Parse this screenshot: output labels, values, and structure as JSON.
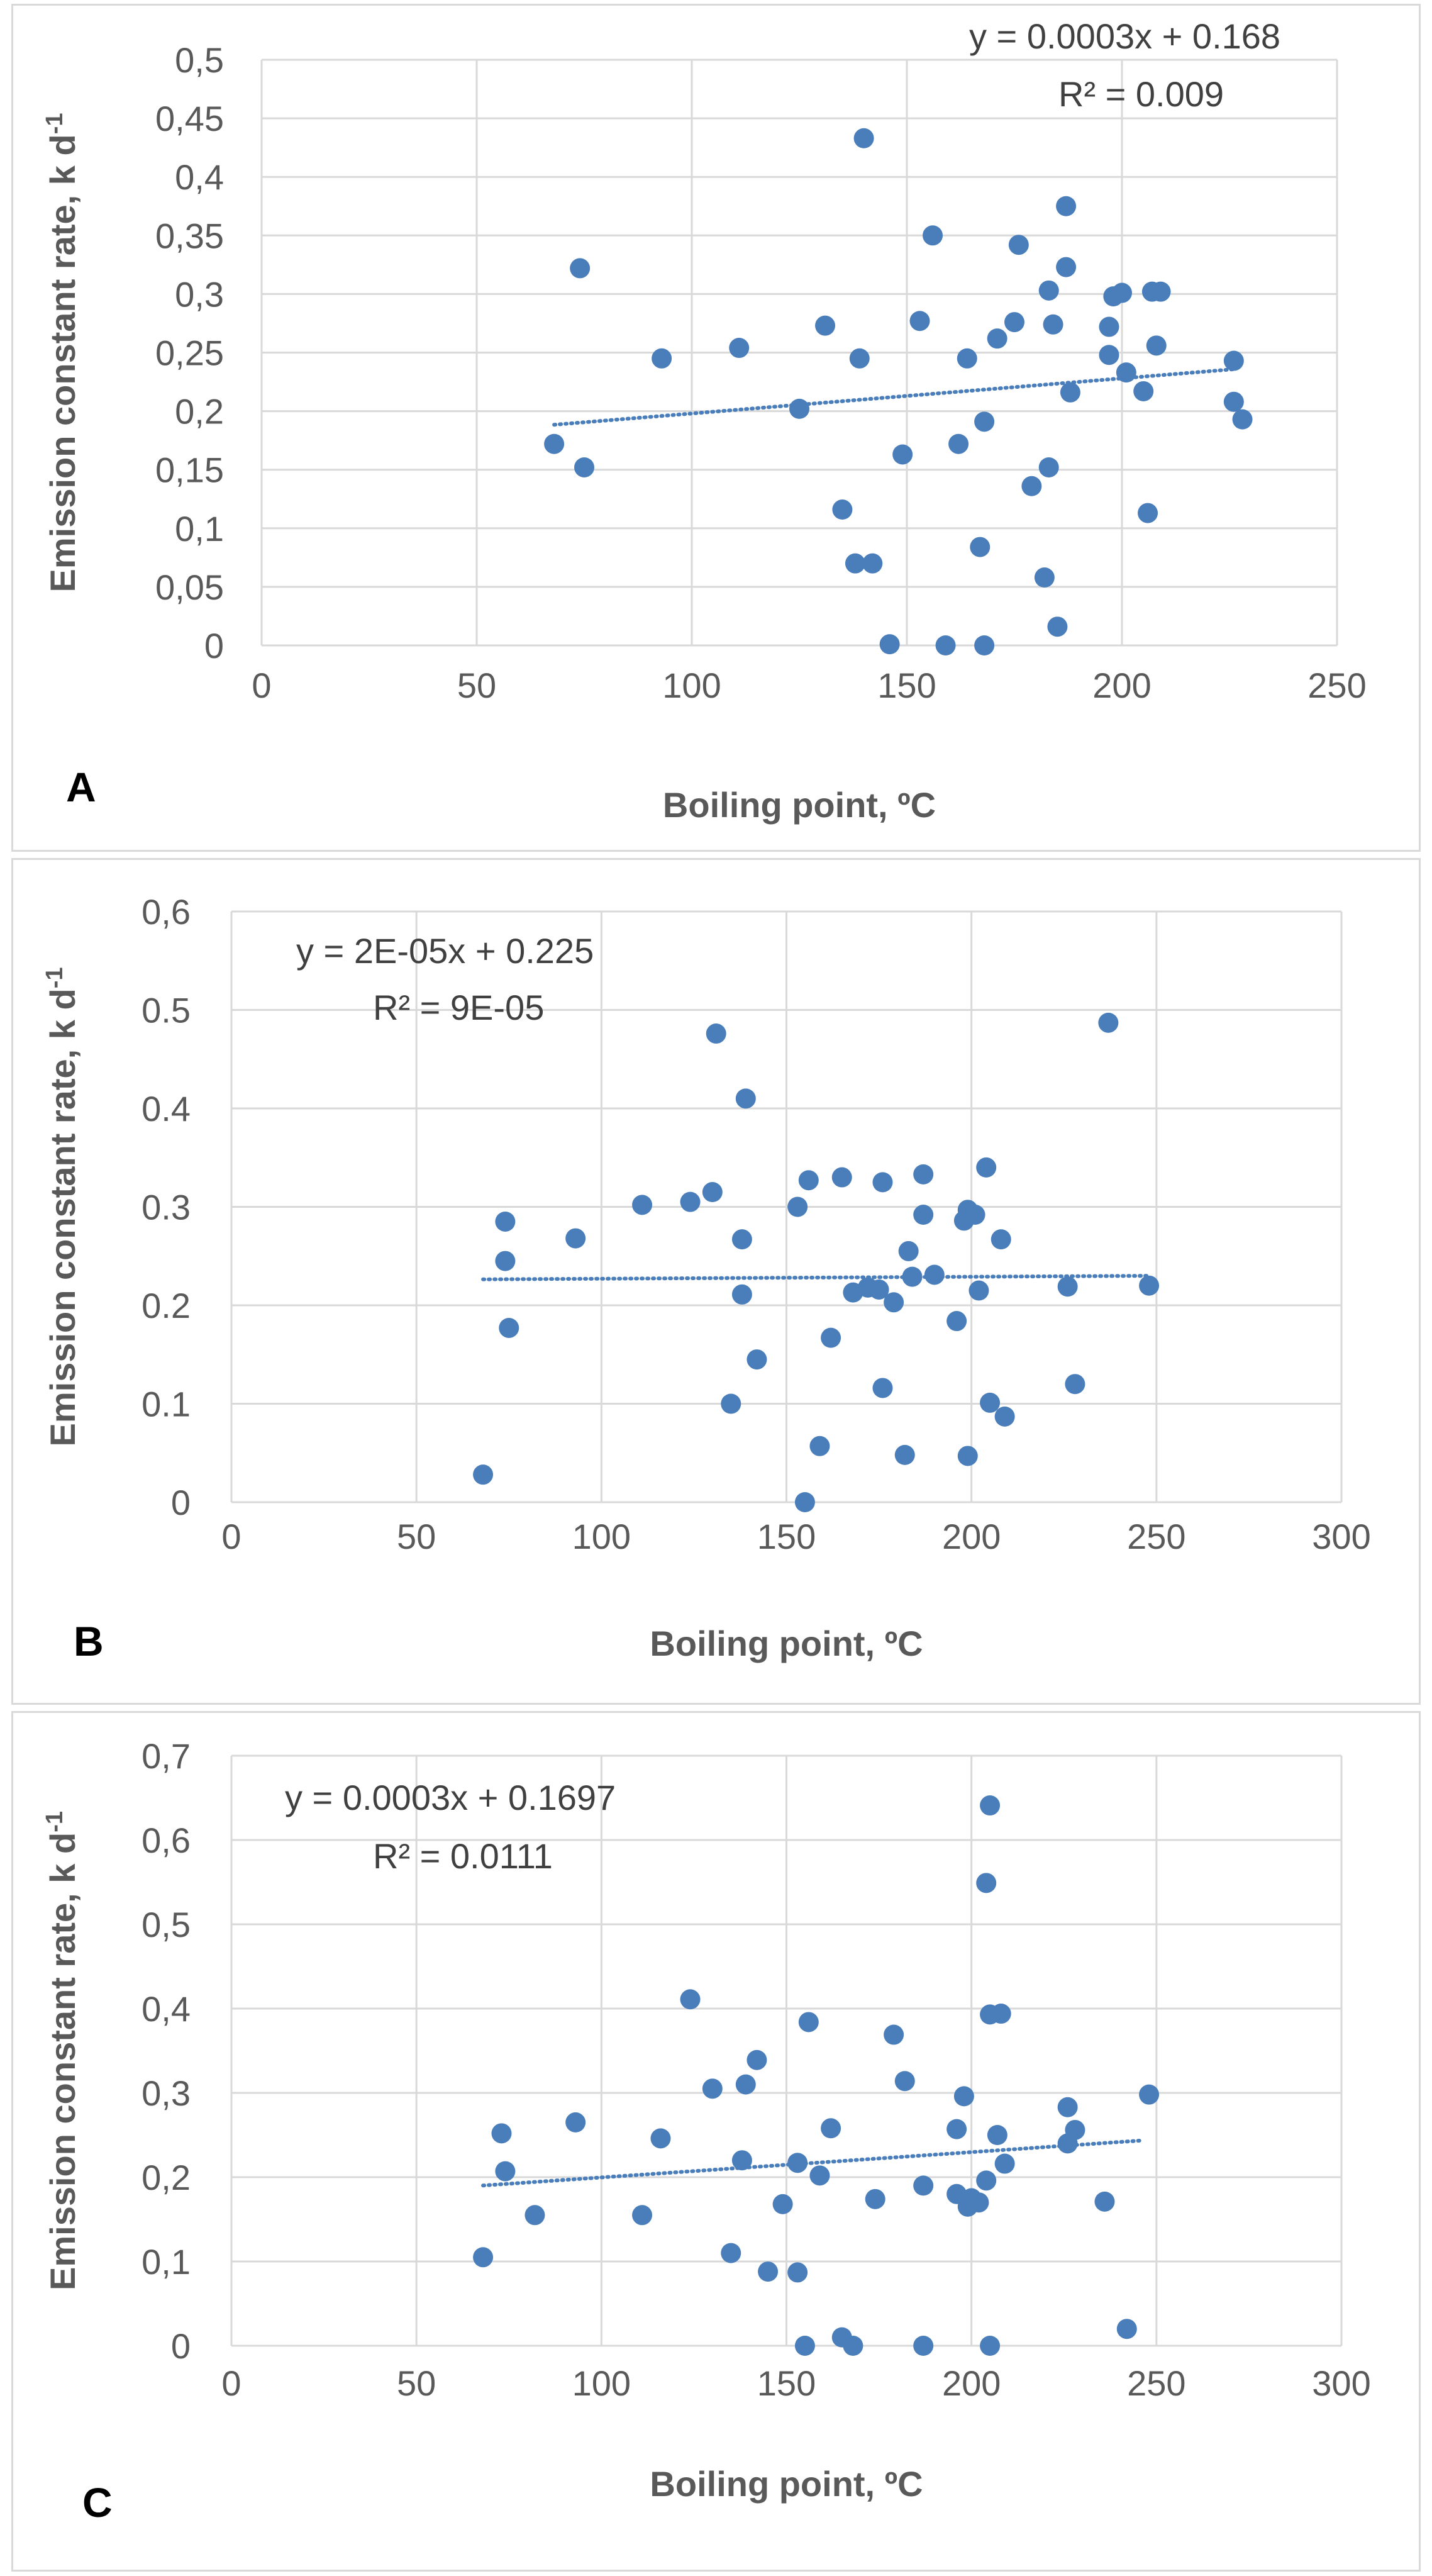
{
  "chart_data": [
    {
      "type": "scatter",
      "panel_label": "A",
      "xlabel": "Boiling point, ºC",
      "ylabel_main": "Emission constant rate, k d",
      "ylabel_sup": "-1",
      "xlim": [
        0,
        250
      ],
      "ylim": [
        0,
        0.5
      ],
      "xticks": [
        0,
        50,
        100,
        150,
        200,
        250
      ],
      "xtick_labels": [
        "0",
        "50",
        "100",
        "150",
        "200",
        "250"
      ],
      "yticks": [
        0,
        0.05,
        0.1,
        0.15,
        0.2,
        0.25,
        0.3,
        0.35,
        0.4,
        0.45,
        0.5
      ],
      "ytick_labels": [
        "0",
        "0,05",
        "0,1",
        "0,15",
        "0,2",
        "0,25",
        "0,3",
        "0,35",
        "0,4",
        "0,45",
        "0,5"
      ],
      "equation": "y = 0.0003x + 0.168",
      "r2": "R² = 0.009",
      "trendline": {
        "slope": 0.0003,
        "intercept": 0.168,
        "x_range": [
          68,
          226
        ]
      },
      "point_color": "#4a7ebb",
      "points": [
        [
          68,
          0.172
        ],
        [
          74,
          0.322
        ],
        [
          75,
          0.152
        ],
        [
          93,
          0.245
        ],
        [
          111,
          0.254
        ],
        [
          125,
          0.202
        ],
        [
          131,
          0.273
        ],
        [
          135,
          0.116
        ],
        [
          138,
          0.07
        ],
        [
          139,
          0.245
        ],
        [
          140,
          0.433
        ],
        [
          142,
          0.07
        ],
        [
          146,
          0.001
        ],
        [
          149,
          0.163
        ],
        [
          153,
          0.277
        ],
        [
          156,
          0.35
        ],
        [
          159,
          0.0
        ],
        [
          162,
          0.172
        ],
        [
          164,
          0.245
        ],
        [
          167,
          0.084
        ],
        [
          168,
          0.191
        ],
        [
          168,
          0.0
        ],
        [
          171,
          0.262
        ],
        [
          175,
          0.276
        ],
        [
          176,
          0.342
        ],
        [
          179,
          0.136
        ],
        [
          182,
          0.058
        ],
        [
          183,
          0.152
        ],
        [
          183,
          0.303
        ],
        [
          184,
          0.274
        ],
        [
          185,
          0.016
        ],
        [
          187,
          0.375
        ],
        [
          187,
          0.323
        ],
        [
          188,
          0.216
        ],
        [
          197,
          0.272
        ],
        [
          197,
          0.248
        ],
        [
          198,
          0.298
        ],
        [
          200,
          0.301
        ],
        [
          201,
          0.233
        ],
        [
          205,
          0.217
        ],
        [
          206,
          0.113
        ],
        [
          207,
          0.302
        ],
        [
          208,
          0.256
        ],
        [
          209,
          0.302
        ],
        [
          226,
          0.243
        ],
        [
          226,
          0.208
        ],
        [
          228,
          0.193
        ]
      ]
    },
    {
      "type": "scatter",
      "panel_label": "B",
      "xlabel": "Boiling point, ºC",
      "ylabel_main": "Emission constant rate, k d",
      "ylabel_sup": "-1",
      "xlim": [
        0,
        300
      ],
      "ylim": [
        0,
        0.6
      ],
      "xticks": [
        0,
        50,
        100,
        150,
        200,
        250,
        300
      ],
      "xtick_labels": [
        "0",
        "50",
        "100",
        "150",
        "200",
        "250",
        "300"
      ],
      "yticks": [
        0,
        0.1,
        0.2,
        0.3,
        0.4,
        0.5,
        0.6
      ],
      "ytick_labels": [
        "0",
        "0.1",
        "0.2",
        "0.3",
        "0.4",
        "0.5",
        "0,6"
      ],
      "equation": "y = 2E-05x + 0.225",
      "r2": "R² = 9E-05",
      "trendline": {
        "slope": 2e-05,
        "intercept": 0.225,
        "x_range": [
          68,
          248
        ]
      },
      "point_color": "#4a7ebb",
      "points": [
        [
          68,
          0.028
        ],
        [
          74,
          0.285
        ],
        [
          74,
          0.245
        ],
        [
          75,
          0.177
        ],
        [
          93,
          0.268
        ],
        [
          111,
          0.302
        ],
        [
          124,
          0.305
        ],
        [
          130,
          0.315
        ],
        [
          131,
          0.476
        ],
        [
          135,
          0.1
        ],
        [
          138,
          0.267
        ],
        [
          138,
          0.211
        ],
        [
          139,
          0.41
        ],
        [
          142,
          0.145
        ],
        [
          153,
          0.3
        ],
        [
          155,
          0.0
        ],
        [
          156,
          0.327
        ],
        [
          159,
          0.057
        ],
        [
          162,
          0.167
        ],
        [
          165,
          0.33
        ],
        [
          168,
          0.213
        ],
        [
          172,
          0.218
        ],
        [
          175,
          0.216
        ],
        [
          176,
          0.116
        ],
        [
          176,
          0.325
        ],
        [
          179,
          0.203
        ],
        [
          182,
          0.048
        ],
        [
          183,
          0.255
        ],
        [
          184,
          0.229
        ],
        [
          187,
          0.333
        ],
        [
          187,
          0.292
        ],
        [
          190,
          0.231
        ],
        [
          196,
          0.184
        ],
        [
          198,
          0.286
        ],
        [
          199,
          0.297
        ],
        [
          199,
          0.047
        ],
        [
          201,
          0.292
        ],
        [
          202,
          0.215
        ],
        [
          204,
          0.34
        ],
        [
          205,
          0.101
        ],
        [
          208,
          0.267
        ],
        [
          209,
          0.087
        ],
        [
          226,
          0.219
        ],
        [
          228,
          0.12
        ],
        [
          237,
          0.487
        ],
        [
          248,
          0.22
        ]
      ]
    },
    {
      "type": "scatter",
      "panel_label": "C",
      "xlabel": "Boiling point, ºC",
      "ylabel_main": "Emission constant rate, k d",
      "ylabel_sup": "-1",
      "xlim": [
        0,
        300
      ],
      "ylim": [
        0,
        0.7
      ],
      "xticks": [
        0,
        50,
        100,
        150,
        200,
        250,
        300
      ],
      "xtick_labels": [
        "0",
        "50",
        "100",
        "150",
        "200",
        "250",
        "300"
      ],
      "yticks": [
        0,
        0.1,
        0.2,
        0.3,
        0.4,
        0.5,
        0.6,
        0.7
      ],
      "ytick_labels": [
        "0",
        "0,1",
        "0,2",
        "0,3",
        "0,4",
        "0,5",
        "0,6",
        "0,7"
      ],
      "equation": "y = 0.0003x + 0.1697",
      "r2": "R² = 0.0111",
      "trendline": {
        "slope": 0.0003,
        "intercept": 0.1697,
        "x_range": [
          68,
          246
        ]
      },
      "point_color": "#4a7ebb",
      "points": [
        [
          68,
          0.105
        ],
        [
          73,
          0.252
        ],
        [
          74,
          0.207
        ],
        [
          82,
          0.155
        ],
        [
          93,
          0.265
        ],
        [
          111,
          0.155
        ],
        [
          116,
          0.246
        ],
        [
          124,
          0.411
        ],
        [
          130,
          0.305
        ],
        [
          135,
          0.11
        ],
        [
          138,
          0.22
        ],
        [
          139,
          0.31
        ],
        [
          142,
          0.339
        ],
        [
          145,
          0.088
        ],
        [
          149,
          0.168
        ],
        [
          153,
          0.217
        ],
        [
          153,
          0.087
        ],
        [
          155,
          0.0
        ],
        [
          156,
          0.384
        ],
        [
          159,
          0.202
        ],
        [
          162,
          0.258
        ],
        [
          165,
          0.01
        ],
        [
          168,
          0.0
        ],
        [
          174,
          0.174
        ],
        [
          179,
          0.369
        ],
        [
          182,
          0.314
        ],
        [
          187,
          0.19
        ],
        [
          187,
          0.0
        ],
        [
          196,
          0.257
        ],
        [
          196,
          0.18
        ],
        [
          198,
          0.296
        ],
        [
          199,
          0.165
        ],
        [
          200,
          0.175
        ],
        [
          202,
          0.17
        ],
        [
          204,
          0.549
        ],
        [
          204,
          0.196
        ],
        [
          205,
          0.641
        ],
        [
          205,
          0.393
        ],
        [
          205,
          0.0
        ],
        [
          207,
          0.25
        ],
        [
          208,
          0.394
        ],
        [
          209,
          0.216
        ],
        [
          226,
          0.283
        ],
        [
          226,
          0.24
        ],
        [
          228,
          0.256
        ],
        [
          236,
          0.171
        ],
        [
          242,
          0.02
        ],
        [
          248,
          0.298
        ]
      ]
    }
  ]
}
